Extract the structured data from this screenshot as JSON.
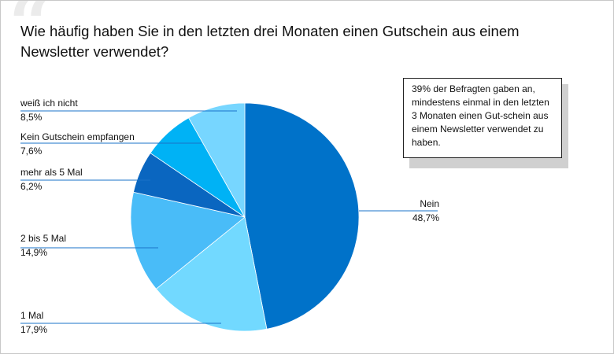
{
  "chart_data": {
    "type": "pie",
    "title": "Wie häufig haben Sie in den letzten drei Monaten einen Gutschein aus einem Newsletter verwendet?",
    "unit": "%",
    "slices": [
      {
        "label": "Nein",
        "value": 48.7,
        "display": "48,7%",
        "color": "#0072c9"
      },
      {
        "label": "1 Mal",
        "value": 17.9,
        "display": "17,9%",
        "color": "#72d9ff"
      },
      {
        "label": "2 bis 5 Mal",
        "value": 14.9,
        "display": "14,9%",
        "color": "#49bcf8"
      },
      {
        "label": "mehr als 5 Mal",
        "value": 6.2,
        "display": "6,2%",
        "color": "#0a66c0"
      },
      {
        "label": "Kein Gutschein empfangen",
        "value": 7.6,
        "display": "7,6%",
        "color": "#00b2f5"
      },
      {
        "label": "weiß ich nicht",
        "value": 8.5,
        "display": "8,5%",
        "color": "#77d6ff"
      }
    ],
    "annotation": "39% der Befragten gaben an, mindestens einmal in den letzten 3 Monaten einen Gut-schein aus einem Newsletter verwendet zu haben."
  },
  "styles": {
    "leader_color": "#1a73c8",
    "quote_color": "#ebebeb"
  },
  "quote_mark": "“"
}
